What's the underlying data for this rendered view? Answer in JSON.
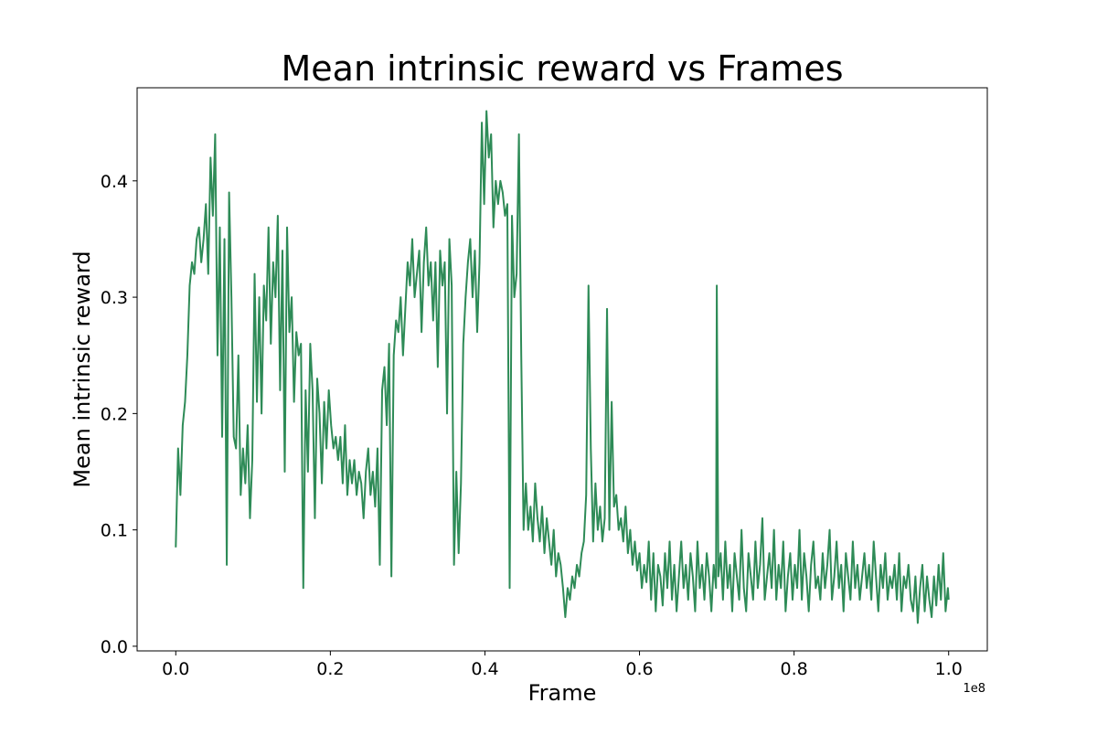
{
  "chart_data": {
    "type": "line",
    "title": "Mean intrinsic reward vs Frames",
    "xlabel": "Frame",
    "ylabel": "Mean intrinsic reward",
    "x_offset_label": "1e8",
    "xlim": [
      -5000000,
      105000000
    ],
    "ylim": [
      -0.004,
      0.48
    ],
    "x_ticks": [
      {
        "value": 0,
        "label": "0.0"
      },
      {
        "value": 20000000,
        "label": "0.2"
      },
      {
        "value": 40000000,
        "label": "0.4"
      },
      {
        "value": 60000000,
        "label": "0.6"
      },
      {
        "value": 80000000,
        "label": "0.8"
      },
      {
        "value": 100000000,
        "label": "1.0"
      }
    ],
    "y_ticks": [
      {
        "value": 0.0,
        "label": "0.0"
      },
      {
        "value": 0.1,
        "label": "0.1"
      },
      {
        "value": 0.2,
        "label": "0.2"
      },
      {
        "value": 0.3,
        "label": "0.3"
      },
      {
        "value": 0.4,
        "label": "0.4"
      }
    ],
    "grid": false,
    "legend": "none",
    "colors": {
      "line": "#2e8b57",
      "axes": "#000000",
      "background": "#ffffff"
    },
    "series": [
      {
        "x": [
          0,
          300000,
          600000,
          900000,
          1200000,
          1500000,
          1800000,
          2100000,
          2400000,
          2700000,
          3000000,
          3300000,
          3600000,
          3900000,
          4200000,
          4500000,
          4800000,
          5100000,
          5400000,
          5700000,
          6000000,
          6300000,
          6600000,
          6900000,
          7200000,
          7500000,
          7800000,
          8100000,
          8400000,
          8700000,
          9000000,
          9300000,
          9600000,
          9900000,
          10200000,
          10500000,
          10800000,
          11100000,
          11400000,
          11700000,
          12000000,
          12300000,
          12600000,
          12900000,
          13200000,
          13500000,
          13800000,
          14100000,
          14400000,
          14700000,
          15000000,
          15300000,
          15600000,
          15900000,
          16200000,
          16500000,
          16800000,
          17100000,
          17400000,
          17700000,
          18000000,
          18300000,
          18600000,
          18900000,
          19200000,
          19500000,
          19800000,
          20100000,
          20400000,
          20700000,
          21000000,
          21300000,
          21600000,
          21900000,
          22200000,
          22500000,
          22800000,
          23100000,
          23400000,
          23700000,
          24000000,
          24300000,
          24600000,
          24900000,
          25200000,
          25500000,
          25800000,
          26100000,
          26400000,
          26700000,
          27000000,
          27300000,
          27600000,
          27900000,
          28200000,
          28500000,
          28800000,
          29100000,
          29400000,
          29700000,
          30000000,
          30300000,
          30600000,
          30900000,
          31200000,
          31500000,
          31800000,
          32100000,
          32400000,
          32700000,
          33000000,
          33300000,
          33600000,
          33900000,
          34200000,
          34500000,
          34800000,
          35100000,
          35400000,
          35700000,
          36000000,
          36300000,
          36600000,
          36900000,
          37200000,
          37500000,
          37800000,
          38100000,
          38400000,
          38700000,
          39000000,
          39300000,
          39600000,
          39900000,
          40200000,
          40500000,
          40800000,
          41100000,
          41400000,
          41700000,
          42000000,
          42300000,
          42600000,
          42900000,
          43200000,
          43500000,
          43800000,
          44100000,
          44400000,
          44700000,
          45000000,
          45300000,
          45600000,
          45900000,
          46200000,
          46500000,
          46800000,
          47100000,
          47400000,
          47700000,
          48000000,
          48300000,
          48600000,
          48900000,
          49200000,
          49500000,
          49800000,
          50100000,
          50400000,
          50700000,
          51000000,
          51300000,
          51600000,
          51900000,
          52200000,
          52500000,
          52800000,
          53100000,
          53400000,
          53700000,
          54000000,
          54300000,
          54600000,
          54900000,
          55200000,
          55500000,
          55800000,
          56100000,
          56400000,
          56700000,
          57000000,
          57300000,
          57600000,
          57900000,
          58200000,
          58500000,
          58800000,
          59100000,
          59400000,
          59700000,
          60000000,
          60300000,
          60600000,
          60900000,
          61200000,
          61500000,
          61800000,
          62100000,
          62400000,
          62700000,
          63000000,
          63300000,
          63600000,
          63900000,
          64200000,
          64500000,
          64800000,
          65100000,
          65400000,
          65700000,
          66000000,
          66300000,
          66600000,
          66900000,
          67200000,
          67500000,
          67800000,
          68100000,
          68400000,
          68700000,
          69000000,
          69300000,
          69600000,
          69900000,
          70000000,
          70200000,
          70500000,
          70800000,
          71100000,
          71400000,
          71700000,
          72000000,
          72300000,
          72600000,
          72900000,
          73200000,
          73500000,
          73800000,
          74100000,
          74400000,
          74700000,
          75000000,
          75300000,
          75600000,
          75900000,
          76200000,
          76500000,
          76800000,
          77100000,
          77400000,
          77700000,
          78000000,
          78300000,
          78600000,
          78900000,
          79200000,
          79500000,
          79800000,
          80100000,
          80400000,
          80700000,
          81000000,
          81300000,
          81600000,
          81900000,
          82200000,
          82500000,
          82800000,
          83100000,
          83400000,
          83700000,
          84000000,
          84300000,
          84600000,
          84900000,
          85200000,
          85500000,
          85800000,
          86100000,
          86400000,
          86700000,
          87000000,
          87300000,
          87600000,
          87900000,
          88200000,
          88500000,
          88800000,
          89100000,
          89400000,
          89700000,
          90000000,
          90300000,
          90600000,
          90900000,
          91200000,
          91500000,
          91800000,
          92100000,
          92400000,
          92700000,
          93000000,
          93300000,
          93600000,
          93900000,
          94200000,
          94500000,
          94800000,
          95100000,
          95400000,
          95700000,
          96000000,
          96300000,
          96600000,
          96900000,
          97200000,
          97500000,
          97800000,
          98100000,
          98400000,
          98700000,
          99000000,
          99300000,
          99600000,
          99900000,
          100000000
        ],
        "y": [
          0.085,
          0.17,
          0.13,
          0.19,
          0.21,
          0.25,
          0.31,
          0.33,
          0.32,
          0.35,
          0.36,
          0.33,
          0.35,
          0.38,
          0.32,
          0.42,
          0.37,
          0.44,
          0.25,
          0.36,
          0.18,
          0.35,
          0.07,
          0.39,
          0.3,
          0.18,
          0.17,
          0.25,
          0.13,
          0.17,
          0.14,
          0.19,
          0.11,
          0.16,
          0.32,
          0.21,
          0.3,
          0.2,
          0.31,
          0.28,
          0.36,
          0.26,
          0.33,
          0.3,
          0.37,
          0.22,
          0.34,
          0.15,
          0.36,
          0.27,
          0.3,
          0.21,
          0.27,
          0.25,
          0.26,
          0.05,
          0.22,
          0.15,
          0.26,
          0.22,
          0.11,
          0.23,
          0.2,
          0.14,
          0.21,
          0.17,
          0.22,
          0.19,
          0.17,
          0.18,
          0.16,
          0.18,
          0.14,
          0.19,
          0.13,
          0.16,
          0.14,
          0.16,
          0.13,
          0.15,
          0.14,
          0.11,
          0.15,
          0.17,
          0.13,
          0.15,
          0.12,
          0.17,
          0.07,
          0.22,
          0.24,
          0.19,
          0.26,
          0.06,
          0.25,
          0.28,
          0.27,
          0.3,
          0.25,
          0.29,
          0.33,
          0.31,
          0.35,
          0.3,
          0.32,
          0.34,
          0.27,
          0.33,
          0.36,
          0.31,
          0.33,
          0.28,
          0.33,
          0.24,
          0.34,
          0.31,
          0.33,
          0.2,
          0.35,
          0.31,
          0.07,
          0.15,
          0.08,
          0.14,
          0.26,
          0.3,
          0.33,
          0.35,
          0.3,
          0.34,
          0.27,
          0.33,
          0.45,
          0.38,
          0.46,
          0.42,
          0.44,
          0.36,
          0.4,
          0.38,
          0.4,
          0.39,
          0.37,
          0.38,
          0.05,
          0.37,
          0.3,
          0.32,
          0.44,
          0.25,
          0.1,
          0.14,
          0.1,
          0.12,
          0.09,
          0.14,
          0.11,
          0.09,
          0.12,
          0.08,
          0.11,
          0.09,
          0.07,
          0.1,
          0.06,
          0.08,
          0.07,
          0.05,
          0.025,
          0.05,
          0.04,
          0.06,
          0.05,
          0.07,
          0.06,
          0.08,
          0.09,
          0.13,
          0.31,
          0.17,
          0.09,
          0.14,
          0.1,
          0.12,
          0.09,
          0.11,
          0.29,
          0.1,
          0.21,
          0.12,
          0.13,
          0.1,
          0.11,
          0.09,
          0.12,
          0.08,
          0.1,
          0.07,
          0.09,
          0.065,
          0.08,
          0.05,
          0.07,
          0.055,
          0.09,
          0.04,
          0.08,
          0.03,
          0.07,
          0.06,
          0.035,
          0.08,
          0.05,
          0.09,
          0.04,
          0.07,
          0.03,
          0.06,
          0.09,
          0.05,
          0.07,
          0.04,
          0.08,
          0.06,
          0.03,
          0.09,
          0.05,
          0.07,
          0.04,
          0.08,
          0.06,
          0.03,
          0.07,
          0.05,
          0.31,
          0.06,
          0.08,
          0.04,
          0.09,
          0.05,
          0.07,
          0.03,
          0.08,
          0.06,
          0.04,
          0.1,
          0.05,
          0.03,
          0.08,
          0.06,
          0.04,
          0.09,
          0.05,
          0.07,
          0.11,
          0.04,
          0.06,
          0.08,
          0.05,
          0.1,
          0.04,
          0.07,
          0.05,
          0.09,
          0.03,
          0.06,
          0.08,
          0.04,
          0.07,
          0.05,
          0.1,
          0.04,
          0.08,
          0.06,
          0.03,
          0.07,
          0.09,
          0.05,
          0.06,
          0.04,
          0.08,
          0.05,
          0.07,
          0.1,
          0.04,
          0.06,
          0.09,
          0.05,
          0.07,
          0.03,
          0.08,
          0.06,
          0.04,
          0.09,
          0.05,
          0.07,
          0.04,
          0.06,
          0.08,
          0.05,
          0.07,
          0.04,
          0.09,
          0.06,
          0.03,
          0.07,
          0.05,
          0.08,
          0.04,
          0.06,
          0.05,
          0.07,
          0.04,
          0.08,
          0.03,
          0.06,
          0.05,
          0.07,
          0.04,
          0.03,
          0.06,
          0.02,
          0.05,
          0.07,
          0.03,
          0.06,
          0.04,
          0.025,
          0.06,
          0.035,
          0.07,
          0.04,
          0.08,
          0.03,
          0.05,
          0.04
        ]
      }
    ]
  }
}
